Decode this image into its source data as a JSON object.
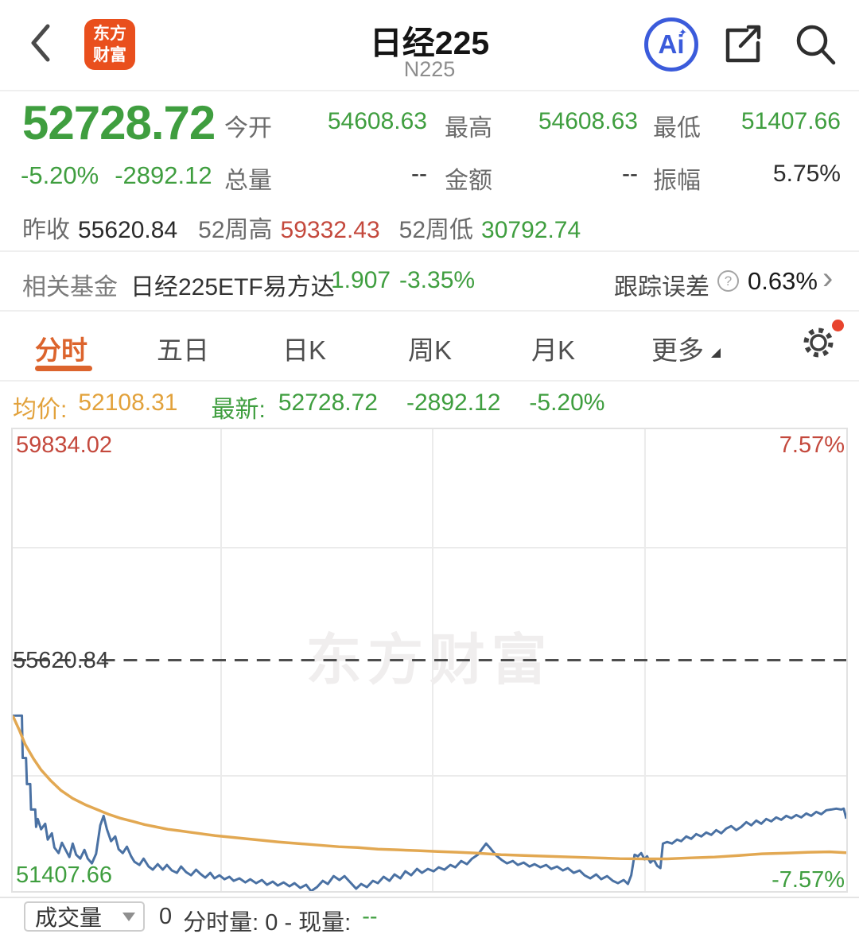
{
  "colors": {
    "up_red": "#c4493d",
    "down_green": "#3f9e3f",
    "accent_orange": "#dc642d",
    "avg_amber": "#e2a23c",
    "price_line_blue": "#4a71a3",
    "avg_line_orange": "#e2a852",
    "ai_blue": "#3b5bdb",
    "logo_orange": "#e94f1d"
  },
  "header": {
    "app_logo_line1": "东方",
    "app_logo_line2": "财富",
    "title": "日经225",
    "subtitle": "N225",
    "ai_badge": "Ai",
    "ai_sparkle": "✦"
  },
  "quote": {
    "price": "52728.72",
    "change_pct": "-5.20%",
    "change_abs": "-2892.12",
    "stats": [
      {
        "label": "今开",
        "value": "54608.63"
      },
      {
        "label": "最高",
        "value": "54608.63"
      },
      {
        "label": "最低",
        "value": "51407.66"
      },
      {
        "label": "总量",
        "value": "--"
      },
      {
        "label": "金额",
        "value": "--"
      },
      {
        "label": "振幅",
        "value": "5.75%"
      }
    ],
    "prev_close_label": "昨收",
    "prev_close": "55620.84",
    "wk52_high_label": "52周高",
    "wk52_high": "59332.43",
    "wk52_low_label": "52周低",
    "wk52_low": "30792.74"
  },
  "fund": {
    "label": "相关基金",
    "name": "日经225ETF易方达",
    "price": "1.907",
    "change": "-3.35%",
    "tracking_label": "跟踪误差",
    "tracking_help": "?",
    "tracking_value": "0.63%",
    "chevron": "›"
  },
  "tabs": {
    "items": [
      "分时",
      "五日",
      "日K",
      "周K",
      "月K",
      "更多"
    ],
    "active_index": 0
  },
  "avg_bar": {
    "avg_label": "均价:",
    "avg_value": "52108.31",
    "latest_label": "最新:",
    "latest_value": "52728.72",
    "latest_change_abs": "-2892.12",
    "latest_change_pct": "-5.20%"
  },
  "chart_data": {
    "type": "line",
    "title": "分时 (intraday minute chart)",
    "watermark": "东方财富",
    "ylim": [
      51407.66,
      59834.02
    ],
    "y_mid_prev_close": 55620.84,
    "right_axis_pct_range": [
      -7.57,
      7.57
    ],
    "grid": {
      "v_internal_lines": 3,
      "h_internal_lines": 3,
      "mid_line_dashed": true
    },
    "labels": {
      "top_left": "59834.02",
      "top_right": "7.57%",
      "mid_left": "55620.84",
      "bottom_left": "51407.66",
      "bottom_right": "-7.57%"
    },
    "series": [
      {
        "name": "price",
        "color": "#4a71a3",
        "width": 3,
        "points": [
          [
            0,
            54608.63
          ],
          [
            0.011,
            54609
          ],
          [
            0.012,
            53836
          ],
          [
            0.016,
            53836
          ],
          [
            0.017,
            53359
          ],
          [
            0.021,
            53359
          ],
          [
            0.022,
            52896
          ],
          [
            0.027,
            52896
          ],
          [
            0.028,
            52578
          ],
          [
            0.03,
            52723
          ],
          [
            0.034,
            52535
          ],
          [
            0.039,
            52636
          ],
          [
            0.042,
            52347
          ],
          [
            0.047,
            52462
          ],
          [
            0.05,
            52202
          ],
          [
            0.055,
            52101
          ],
          [
            0.059,
            52289
          ],
          [
            0.064,
            52144
          ],
          [
            0.068,
            52029
          ],
          [
            0.072,
            52275
          ],
          [
            0.076,
            52072
          ],
          [
            0.081,
            52000
          ],
          [
            0.086,
            52159
          ],
          [
            0.09,
            52000
          ],
          [
            0.095,
            51913
          ],
          [
            0.1,
            52087
          ],
          [
            0.105,
            52607
          ],
          [
            0.109,
            52780
          ],
          [
            0.113,
            52535
          ],
          [
            0.118,
            52318
          ],
          [
            0.123,
            52405
          ],
          [
            0.127,
            52173
          ],
          [
            0.132,
            52101
          ],
          [
            0.137,
            52217
          ],
          [
            0.142,
            52043
          ],
          [
            0.146,
            51942
          ],
          [
            0.152,
            51884
          ],
          [
            0.157,
            52000
          ],
          [
            0.163,
            51855
          ],
          [
            0.168,
            51798
          ],
          [
            0.174,
            51899
          ],
          [
            0.18,
            51798
          ],
          [
            0.185,
            51884
          ],
          [
            0.191,
            51783
          ],
          [
            0.197,
            51740
          ],
          [
            0.202,
            51855
          ],
          [
            0.208,
            51754
          ],
          [
            0.214,
            51696
          ],
          [
            0.22,
            51798
          ],
          [
            0.225,
            51725
          ],
          [
            0.231,
            51653
          ],
          [
            0.237,
            51740
          ],
          [
            0.242,
            51639
          ],
          [
            0.248,
            51696
          ],
          [
            0.254,
            51624
          ],
          [
            0.26,
            51668
          ],
          [
            0.265,
            51595
          ],
          [
            0.272,
            51639
          ],
          [
            0.279,
            51566
          ],
          [
            0.285,
            51624
          ],
          [
            0.292,
            51552
          ],
          [
            0.299,
            51610
          ],
          [
            0.305,
            51523
          ],
          [
            0.312,
            51581
          ],
          [
            0.318,
            51509
          ],
          [
            0.325,
            51566
          ],
          [
            0.332,
            51494
          ],
          [
            0.338,
            51552
          ],
          [
            0.345,
            51465
          ],
          [
            0.352,
            51523
          ],
          [
            0.358,
            51408
          ],
          [
            0.365,
            51480
          ],
          [
            0.372,
            51595
          ],
          [
            0.378,
            51537
          ],
          [
            0.385,
            51682
          ],
          [
            0.392,
            51610
          ],
          [
            0.398,
            51682
          ],
          [
            0.405,
            51566
          ],
          [
            0.412,
            51451
          ],
          [
            0.418,
            51537
          ],
          [
            0.425,
            51480
          ],
          [
            0.432,
            51595
          ],
          [
            0.438,
            51552
          ],
          [
            0.445,
            51668
          ],
          [
            0.452,
            51595
          ],
          [
            0.458,
            51711
          ],
          [
            0.465,
            51639
          ],
          [
            0.471,
            51769
          ],
          [
            0.478,
            51696
          ],
          [
            0.485,
            51812
          ],
          [
            0.491,
            51740
          ],
          [
            0.498,
            51812
          ],
          [
            0.505,
            51769
          ],
          [
            0.511,
            51841
          ],
          [
            0.518,
            51798
          ],
          [
            0.525,
            51884
          ],
          [
            0.531,
            51841
          ],
          [
            0.538,
            51957
          ],
          [
            0.545,
            51899
          ],
          [
            0.551,
            52000
          ],
          [
            0.558,
            52072
          ],
          [
            0.565,
            52217
          ],
          [
            0.568,
            52275
          ],
          [
            0.573,
            52188
          ],
          [
            0.58,
            52058
          ],
          [
            0.587,
            51971
          ],
          [
            0.593,
            51913
          ],
          [
            0.6,
            51957
          ],
          [
            0.606,
            51884
          ],
          [
            0.613,
            51928
          ],
          [
            0.62,
            51855
          ],
          [
            0.626,
            51899
          ],
          [
            0.633,
            51841
          ],
          [
            0.64,
            51884
          ],
          [
            0.646,
            51812
          ],
          [
            0.653,
            51855
          ],
          [
            0.66,
            51783
          ],
          [
            0.666,
            51827
          ],
          [
            0.673,
            51740
          ],
          [
            0.68,
            51783
          ],
          [
            0.686,
            51696
          ],
          [
            0.693,
            51639
          ],
          [
            0.7,
            51711
          ],
          [
            0.706,
            51624
          ],
          [
            0.713,
            51682
          ],
          [
            0.72,
            51595
          ],
          [
            0.726,
            51552
          ],
          [
            0.733,
            51610
          ],
          [
            0.738,
            51537
          ],
          [
            0.742,
            51696
          ],
          [
            0.746,
            52072
          ],
          [
            0.75,
            52043
          ],
          [
            0.754,
            52101
          ],
          [
            0.758,
            51986
          ],
          [
            0.761,
            52043
          ],
          [
            0.765,
            51928
          ],
          [
            0.769,
            51986
          ],
          [
            0.773,
            51870
          ],
          [
            0.777,
            51827
          ],
          [
            0.78,
            52275
          ],
          [
            0.785,
            52304
          ],
          [
            0.791,
            52275
          ],
          [
            0.797,
            52347
          ],
          [
            0.802,
            52318
          ],
          [
            0.808,
            52405
          ],
          [
            0.814,
            52361
          ],
          [
            0.82,
            52448
          ],
          [
            0.826,
            52405
          ],
          [
            0.832,
            52477
          ],
          [
            0.838,
            52433
          ],
          [
            0.844,
            52520
          ],
          [
            0.85,
            52462
          ],
          [
            0.856,
            52549
          ],
          [
            0.862,
            52593
          ],
          [
            0.868,
            52520
          ],
          [
            0.874,
            52578
          ],
          [
            0.88,
            52665
          ],
          [
            0.886,
            52607
          ],
          [
            0.892,
            52694
          ],
          [
            0.898,
            52636
          ],
          [
            0.904,
            52723
          ],
          [
            0.91,
            52679
          ],
          [
            0.916,
            52752
          ],
          [
            0.922,
            52708
          ],
          [
            0.928,
            52780
          ],
          [
            0.934,
            52737
          ],
          [
            0.94,
            52795
          ],
          [
            0.946,
            52752
          ],
          [
            0.952,
            52824
          ],
          [
            0.958,
            52780
          ],
          [
            0.964,
            52853
          ],
          [
            0.97,
            52810
          ],
          [
            0.976,
            52882
          ],
          [
            0.982,
            52896
          ],
          [
            0.988,
            52911
          ],
          [
            0.994,
            52896
          ],
          [
            0.997,
            52911
          ],
          [
            1,
            52728.72
          ]
        ]
      },
      {
        "name": "average",
        "color": "#e2a852",
        "width": 3.5,
        "points": [
          [
            0,
            54608.63
          ],
          [
            0.008,
            54342
          ],
          [
            0.015,
            54081
          ],
          [
            0.025,
            53821
          ],
          [
            0.034,
            53619
          ],
          [
            0.046,
            53416
          ],
          [
            0.058,
            53243
          ],
          [
            0.072,
            53098
          ],
          [
            0.087,
            52983
          ],
          [
            0.101,
            52896
          ],
          [
            0.115,
            52809
          ],
          [
            0.129,
            52737
          ],
          [
            0.144,
            52679
          ],
          [
            0.158,
            52622
          ],
          [
            0.172,
            52578
          ],
          [
            0.186,
            52535
          ],
          [
            0.201,
            52506
          ],
          [
            0.215,
            52477
          ],
          [
            0.229,
            52448
          ],
          [
            0.243,
            52419
          ],
          [
            0.262,
            52390
          ],
          [
            0.281,
            52361
          ],
          [
            0.3,
            52332
          ],
          [
            0.319,
            52304
          ],
          [
            0.343,
            52275
          ],
          [
            0.367,
            52246
          ],
          [
            0.391,
            52217
          ],
          [
            0.414,
            52202
          ],
          [
            0.438,
            52173
          ],
          [
            0.462,
            52159
          ],
          [
            0.486,
            52145
          ],
          [
            0.51,
            52130
          ],
          [
            0.533,
            52116
          ],
          [
            0.557,
            52101
          ],
          [
            0.586,
            52072
          ],
          [
            0.614,
            52058
          ],
          [
            0.643,
            52043
          ],
          [
            0.671,
            52029
          ],
          [
            0.7,
            52014
          ],
          [
            0.728,
            52000
          ],
          [
            0.757,
            51995
          ],
          [
            0.785,
            51995
          ],
          [
            0.814,
            52014
          ],
          [
            0.842,
            52029
          ],
          [
            0.871,
            52058
          ],
          [
            0.899,
            52087
          ],
          [
            0.928,
            52101
          ],
          [
            0.956,
            52116
          ],
          [
            0.98,
            52123
          ],
          [
            1,
            52108.31
          ]
        ]
      }
    ]
  },
  "volume_bar": {
    "selector_label": "成交量",
    "volume_value": "0",
    "detail_label": "分时量: 0 - 现量:",
    "current_value": "--"
  }
}
